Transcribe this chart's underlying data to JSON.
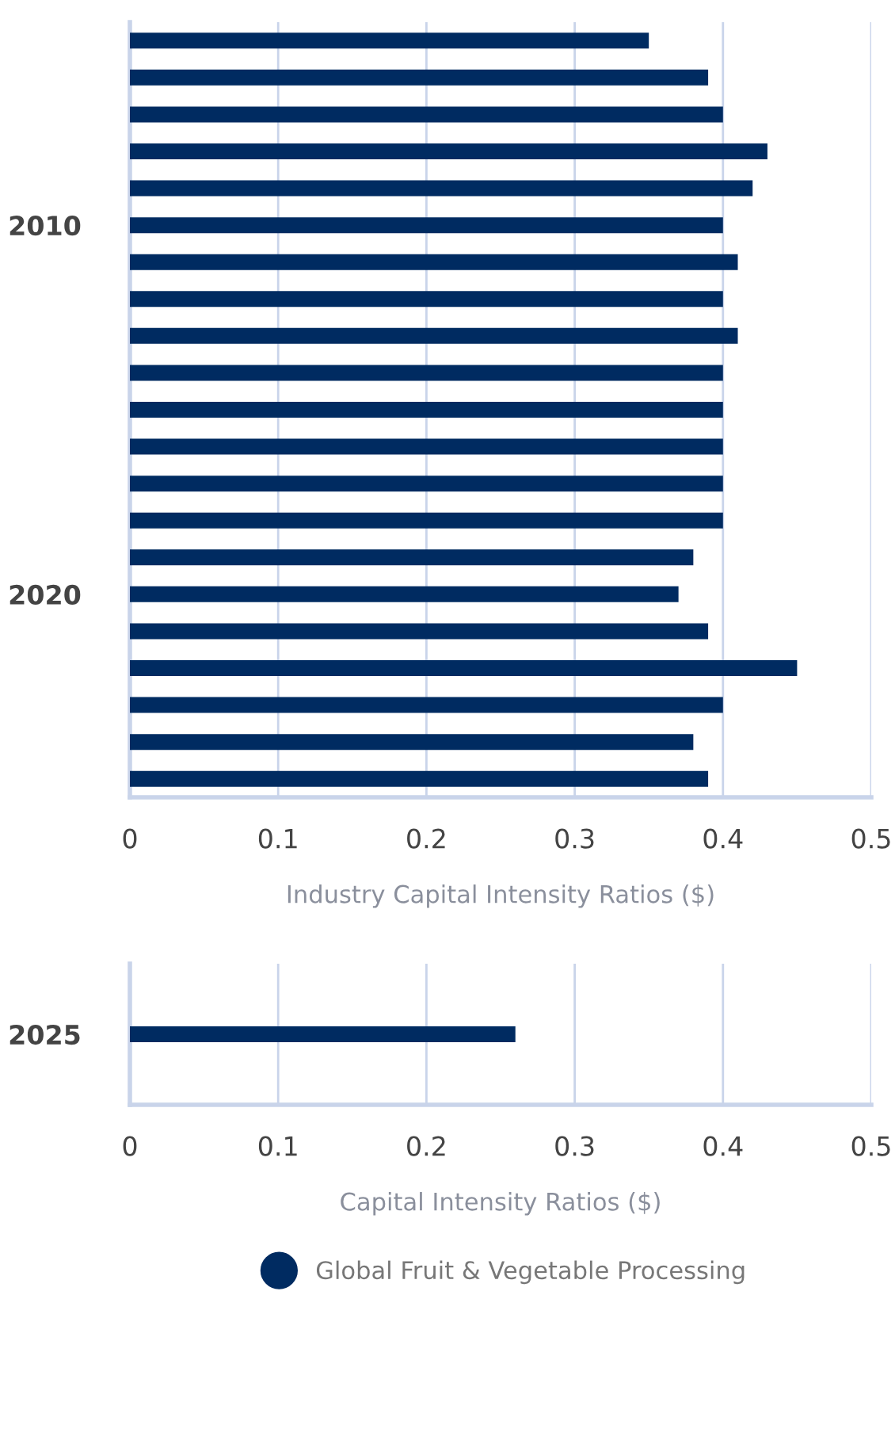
{
  "chart_data": [
    {
      "type": "bar",
      "orientation": "horizontal",
      "xlabel": "Industry Capital Intensity Ratios ($)",
      "categories": [
        null,
        null,
        null,
        null,
        null,
        "2010",
        null,
        null,
        null,
        null,
        null,
        null,
        null,
        null,
        null,
        "2020",
        null,
        null,
        null,
        null,
        null
      ],
      "series": [
        {
          "color": "#002b61",
          "values": [
            0.35,
            0.39,
            0.4,
            0.43,
            0.42,
            0.4,
            0.41,
            0.4,
            0.41,
            0.4,
            0.4,
            0.4,
            0.4,
            0.4,
            0.38,
            0.37,
            0.39,
            0.45,
            0.4,
            0.38,
            0.39
          ]
        }
      ],
      "xlim": [
        0,
        0.5
      ],
      "xticks": [
        0,
        0.1,
        0.2,
        0.3,
        0.4,
        0.5
      ],
      "grid": "x"
    },
    {
      "type": "bar",
      "orientation": "horizontal",
      "xlabel": "Capital Intensity Ratios ($)",
      "categories": [
        "2025"
      ],
      "series": [
        {
          "name": "Global Fruit & Vegetable Processing",
          "color": "#002b61",
          "values": [
            0.26
          ]
        }
      ],
      "xlim": [
        0,
        0.5
      ],
      "xticks": [
        0,
        0.1,
        0.2,
        0.3,
        0.4,
        0.5
      ],
      "grid": "x",
      "legend": "bottom",
      "marker": "circle"
    }
  ]
}
